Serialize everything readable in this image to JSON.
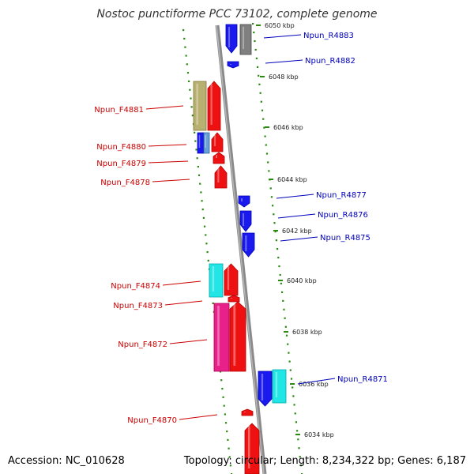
{
  "title": "Nostoc punctiforme PCC 73102, complete genome",
  "footer": {
    "accession": "Accession: NC_010628",
    "topology": "Topology: circular; Length: 8,234,322 bp; Genes: 6,187"
  },
  "colors": {
    "label_forward": "#cc0000",
    "label_reverse": "#0000bb",
    "scale_tick": "#2a8a10",
    "backbone": "#8a8a8a"
  },
  "scale_marks": [
    {
      "label": "6050 kbp"
    },
    {
      "label": "6048 kbp"
    },
    {
      "label": "6046 kbp"
    },
    {
      "label": "6044 kbp"
    },
    {
      "label": "6042 kbp"
    },
    {
      "label": "6040 kbp"
    },
    {
      "label": "6038 kbp"
    },
    {
      "label": "6036 kbp"
    },
    {
      "label": "6034 kbp"
    }
  ],
  "forward_genes": [
    {
      "label": "Npun_F4881"
    },
    {
      "label": "Npun_F4880"
    },
    {
      "label": "Npun_F4879"
    },
    {
      "label": "Npun_F4878"
    },
    {
      "label": "Npun_F4874"
    },
    {
      "label": "Npun_F4873"
    },
    {
      "label": "Npun_F4872"
    },
    {
      "label": "Npun_F4870"
    }
  ],
  "reverse_genes": [
    {
      "label": "Npun_R4883"
    },
    {
      "label": "Npun_R4882"
    },
    {
      "label": "Npun_R4877"
    },
    {
      "label": "Npun_R4876"
    },
    {
      "label": "Npun_R4875"
    },
    {
      "label": "Npun_R4871"
    }
  ]
}
